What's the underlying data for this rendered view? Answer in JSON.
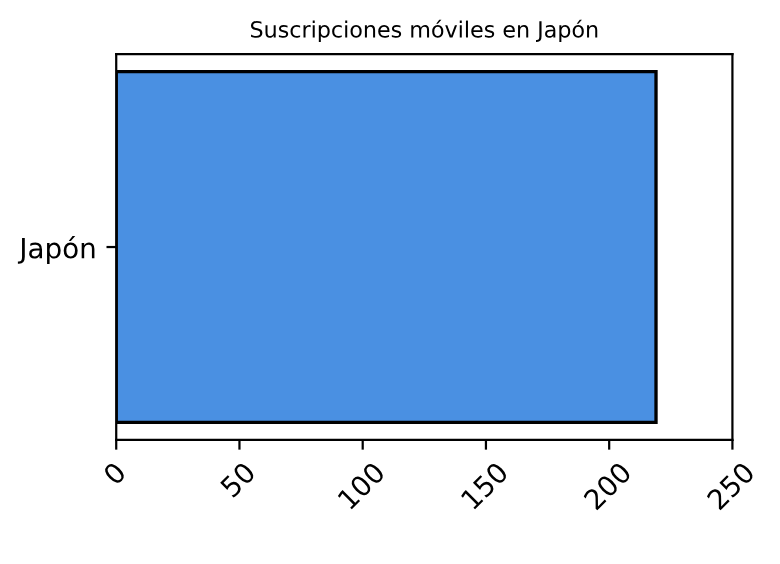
{
  "chart_data": {
    "type": "bar",
    "orientation": "horizontal",
    "title": "Suscripciones móviles en Japón",
    "categories": [
      "Japón"
    ],
    "values": [
      219
    ],
    "color": "#4a90e2",
    "xlim": [
      0,
      250
    ],
    "xticks": [
      0,
      50,
      100,
      150,
      200,
      250
    ],
    "grid": false
  }
}
